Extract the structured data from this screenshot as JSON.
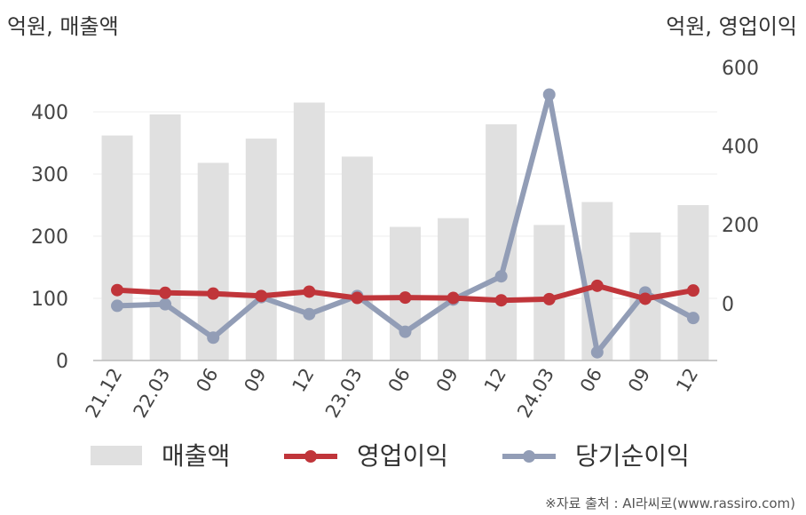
{
  "chart_data": {
    "type": "bar",
    "categories": [
      "21.12",
      "22.03",
      "06",
      "09",
      "12",
      "23.03",
      "06",
      "09",
      "12",
      "24.03",
      "06",
      "09",
      "12"
    ],
    "left_axis": {
      "unit_label": "억원, 매출액",
      "ylim": [
        0,
        500
      ],
      "ticks": [
        0,
        100,
        200,
        300,
        400
      ]
    },
    "right_axis": {
      "unit_label": "억원, 영업이익",
      "ylim": [
        -145,
        645
      ],
      "ticks": [
        0,
        200,
        400,
        600
      ]
    },
    "series": [
      {
        "name": "매출액",
        "kind": "bar",
        "axis": "left",
        "color": "#e0e0e0",
        "values": [
          362,
          396,
          318,
          357,
          415,
          328,
          215,
          229,
          380,
          218,
          255,
          206,
          250
        ]
      },
      {
        "name": "영업이익",
        "kind": "line",
        "axis": "right",
        "color": "#c0353a",
        "values": [
          34,
          27,
          25,
          19,
          30,
          14,
          15,
          14,
          8,
          11,
          45,
          12,
          33
        ]
      },
      {
        "name": "당기순이익",
        "kind": "line",
        "axis": "right",
        "color": "#929db6",
        "values": [
          -6,
          -2,
          -87,
          16,
          -27,
          19,
          -72,
          10,
          69,
          531,
          -124,
          28,
          -37
        ]
      }
    ],
    "grid": true,
    "legend_position": "bottom"
  },
  "source": "※자료 출처 : AI라씨로(www.rassiro.com)"
}
